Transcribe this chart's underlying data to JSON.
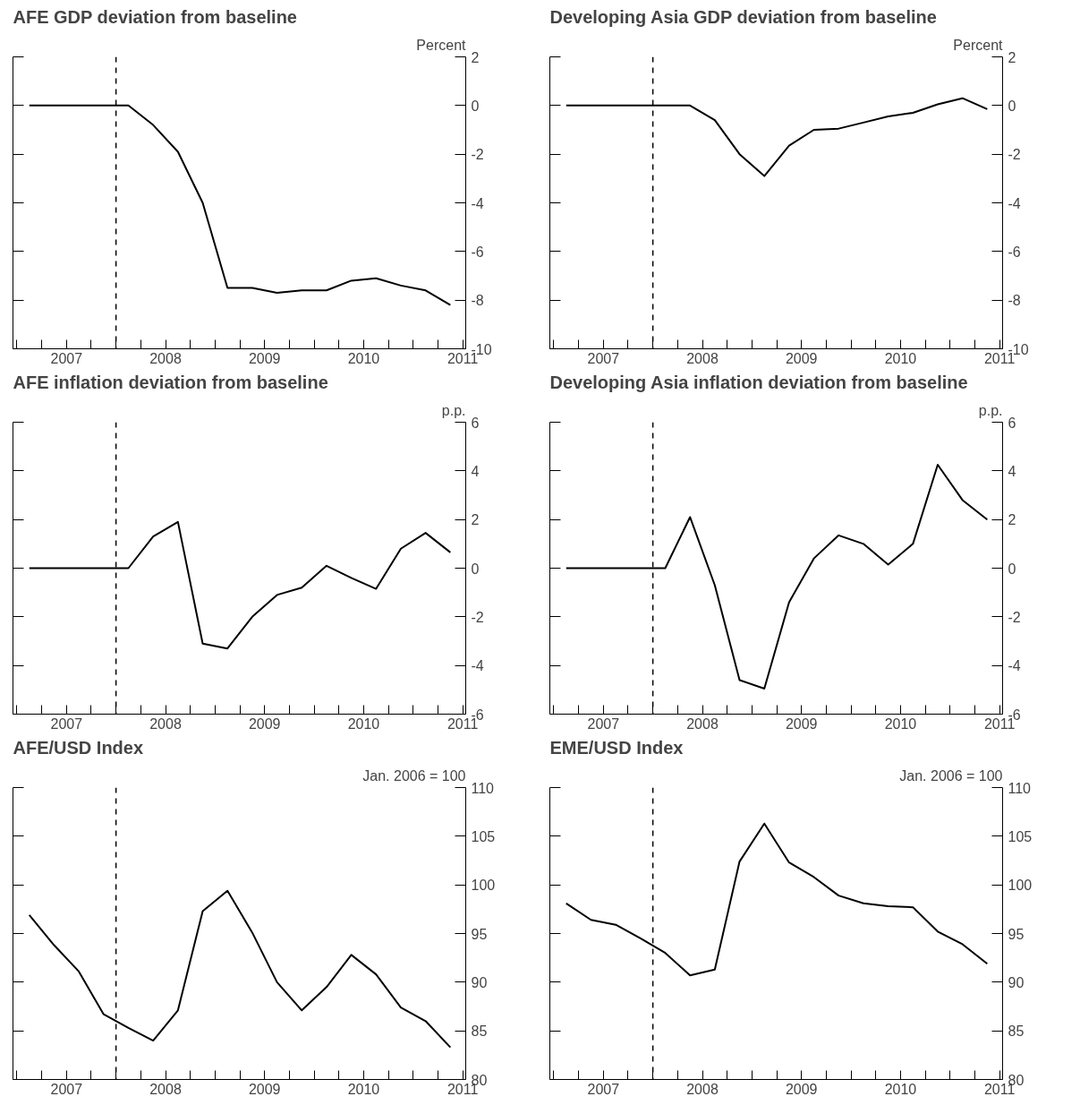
{
  "chart_data": [
    {
      "type": "line",
      "title": "AFE GDP deviation from baseline",
      "ylabel": "Percent",
      "x": [
        2007.125,
        2007.375,
        2007.625,
        2007.875,
        2008.125,
        2008.375,
        2008.625,
        2008.875,
        2009.125,
        2009.375,
        2009.625,
        2009.875,
        2010.125,
        2010.375,
        2010.625,
        2010.875,
        2011.125,
        2011.375
      ],
      "series": [
        {
          "color": "#000000",
          "values": [
            0,
            0,
            0,
            0,
            0,
            -0.8,
            -1.9,
            -4.0,
            -7.5,
            -7.5,
            -7.7,
            -7.6,
            -7.6,
            -7.2,
            -7.1,
            -7.4,
            -7.6,
            -8.2
          ]
        }
      ],
      "xlim": [
        2006.96,
        2011.53
      ],
      "ylim": [
        -10,
        2
      ],
      "xticks": [
        {
          "value": 2007,
          "label": null
        },
        {
          "value": 2007.25,
          "label": null
        },
        {
          "value": 2007.5,
          "label": "2007"
        },
        {
          "value": 2007.75,
          "label": null
        },
        {
          "value": 2008,
          "label": null
        },
        {
          "value": 2008.25,
          "label": null
        },
        {
          "value": 2008.5,
          "label": "2008"
        },
        {
          "value": 2008.75,
          "label": null
        },
        {
          "value": 2009,
          "label": null
        },
        {
          "value": 2009.25,
          "label": null
        },
        {
          "value": 2009.5,
          "label": "2009"
        },
        {
          "value": 2009.75,
          "label": null
        },
        {
          "value": 2010,
          "label": null
        },
        {
          "value": 2010.25,
          "label": null
        },
        {
          "value": 2010.5,
          "label": "2010"
        },
        {
          "value": 2010.75,
          "label": null
        },
        {
          "value": 2011,
          "label": null
        },
        {
          "value": 2011.25,
          "label": null
        },
        {
          "value": 2011.5,
          "label": "2011"
        }
      ],
      "yticks": [
        -10,
        -8,
        -6,
        -4,
        -2,
        0,
        2
      ],
      "ref_lines": [
        {
          "axis": "x",
          "value": 2008,
          "line_style": "dashed"
        }
      ]
    },
    {
      "type": "line",
      "title": "Developing Asia GDP deviation from baseline",
      "ylabel": "Percent",
      "x": [
        2007.125,
        2007.375,
        2007.625,
        2007.875,
        2008.125,
        2008.375,
        2008.625,
        2008.875,
        2009.125,
        2009.375,
        2009.625,
        2009.875,
        2010.125,
        2010.375,
        2010.625,
        2010.875,
        2011.125,
        2011.375
      ],
      "series": [
        {
          "color": "#000000",
          "values": [
            0,
            0,
            0,
            0,
            0,
            0,
            -0.6,
            -2.0,
            -2.9,
            -1.65,
            -1.0,
            -0.95,
            -0.7,
            -0.45,
            -0.3,
            0.05,
            0.3,
            -0.15
          ]
        }
      ],
      "xlim": [
        2006.96,
        2011.53
      ],
      "ylim": [
        -10,
        2
      ],
      "xticks": [
        {
          "value": 2007,
          "label": null
        },
        {
          "value": 2007.25,
          "label": null
        },
        {
          "value": 2007.5,
          "label": "2007"
        },
        {
          "value": 2007.75,
          "label": null
        },
        {
          "value": 2008,
          "label": null
        },
        {
          "value": 2008.25,
          "label": null
        },
        {
          "value": 2008.5,
          "label": "2008"
        },
        {
          "value": 2008.75,
          "label": null
        },
        {
          "value": 2009,
          "label": null
        },
        {
          "value": 2009.25,
          "label": null
        },
        {
          "value": 2009.5,
          "label": "2009"
        },
        {
          "value": 2009.75,
          "label": null
        },
        {
          "value": 2010,
          "label": null
        },
        {
          "value": 2010.25,
          "label": null
        },
        {
          "value": 2010.5,
          "label": "2010"
        },
        {
          "value": 2010.75,
          "label": null
        },
        {
          "value": 2011,
          "label": null
        },
        {
          "value": 2011.25,
          "label": null
        },
        {
          "value": 2011.5,
          "label": "2011"
        }
      ],
      "yticks": [
        -10,
        -8,
        -6,
        -4,
        -2,
        0,
        2
      ],
      "ref_lines": [
        {
          "axis": "x",
          "value": 2008,
          "line_style": "dashed"
        }
      ]
    },
    {
      "type": "line",
      "title": "AFE inflation deviation from baseline",
      "ylabel": "p.p.",
      "x": [
        2007.125,
        2007.375,
        2007.625,
        2007.875,
        2008.125,
        2008.375,
        2008.625,
        2008.875,
        2009.125,
        2009.375,
        2009.625,
        2009.875,
        2010.125,
        2010.375,
        2010.625,
        2010.875,
        2011.125,
        2011.375
      ],
      "series": [
        {
          "color": "#000000",
          "values": [
            0,
            0,
            0,
            0,
            0,
            1.3,
            1.9,
            -3.1,
            -3.3,
            -2.0,
            -1.1,
            -0.8,
            0.1,
            -0.4,
            -0.85,
            0.8,
            1.45,
            0.65
          ]
        }
      ],
      "xlim": [
        2006.96,
        2011.53
      ],
      "ylim": [
        -6,
        6
      ],
      "xticks": [
        {
          "value": 2007,
          "label": null
        },
        {
          "value": 2007.25,
          "label": null
        },
        {
          "value": 2007.5,
          "label": "2007"
        },
        {
          "value": 2007.75,
          "label": null
        },
        {
          "value": 2008,
          "label": null
        },
        {
          "value": 2008.25,
          "label": null
        },
        {
          "value": 2008.5,
          "label": "2008"
        },
        {
          "value": 2008.75,
          "label": null
        },
        {
          "value": 2009,
          "label": null
        },
        {
          "value": 2009.25,
          "label": null
        },
        {
          "value": 2009.5,
          "label": "2009"
        },
        {
          "value": 2009.75,
          "label": null
        },
        {
          "value": 2010,
          "label": null
        },
        {
          "value": 2010.25,
          "label": null
        },
        {
          "value": 2010.5,
          "label": "2010"
        },
        {
          "value": 2010.75,
          "label": null
        },
        {
          "value": 2011,
          "label": null
        },
        {
          "value": 2011.25,
          "label": null
        },
        {
          "value": 2011.5,
          "label": "2011"
        }
      ],
      "yticks": [
        -6,
        -4,
        -2,
        0,
        2,
        4,
        6
      ],
      "ref_lines": [
        {
          "axis": "x",
          "value": 2008,
          "line_style": "dashed"
        }
      ]
    },
    {
      "type": "line",
      "title": "Developing Asia inflation deviation from baseline",
      "ylabel": "p.p.",
      "x": [
        2007.125,
        2007.375,
        2007.625,
        2007.875,
        2008.125,
        2008.375,
        2008.625,
        2008.875,
        2009.125,
        2009.375,
        2009.625,
        2009.875,
        2010.125,
        2010.375,
        2010.625,
        2010.875,
        2011.125,
        2011.375
      ],
      "series": [
        {
          "color": "#000000",
          "values": [
            0,
            0,
            0,
            0,
            0,
            2.1,
            -0.7,
            -4.6,
            -4.95,
            -1.4,
            0.4,
            1.35,
            1.0,
            0.15,
            1.0,
            4.25,
            2.8,
            2.0
          ]
        }
      ],
      "xlim": [
        2006.96,
        2011.53
      ],
      "ylim": [
        -6,
        6
      ],
      "xticks": [
        {
          "value": 2007,
          "label": null
        },
        {
          "value": 2007.25,
          "label": null
        },
        {
          "value": 2007.5,
          "label": "2007"
        },
        {
          "value": 2007.75,
          "label": null
        },
        {
          "value": 2008,
          "label": null
        },
        {
          "value": 2008.25,
          "label": null
        },
        {
          "value": 2008.5,
          "label": "2008"
        },
        {
          "value": 2008.75,
          "label": null
        },
        {
          "value": 2009,
          "label": null
        },
        {
          "value": 2009.25,
          "label": null
        },
        {
          "value": 2009.5,
          "label": "2009"
        },
        {
          "value": 2009.75,
          "label": null
        },
        {
          "value": 2010,
          "label": null
        },
        {
          "value": 2010.25,
          "label": null
        },
        {
          "value": 2010.5,
          "label": "2010"
        },
        {
          "value": 2010.75,
          "label": null
        },
        {
          "value": 2011,
          "label": null
        },
        {
          "value": 2011.25,
          "label": null
        },
        {
          "value": 2011.5,
          "label": "2011"
        }
      ],
      "yticks": [
        -6,
        -4,
        -2,
        0,
        2,
        4,
        6
      ],
      "ref_lines": [
        {
          "axis": "x",
          "value": 2008,
          "line_style": "dashed"
        }
      ]
    },
    {
      "type": "line",
      "title": "AFE/USD Index",
      "ylabel": "Jan. 2006 = 100",
      "x": [
        2007.125,
        2007.375,
        2007.625,
        2007.875,
        2008.125,
        2008.375,
        2008.625,
        2008.875,
        2009.125,
        2009.375,
        2009.625,
        2009.875,
        2010.125,
        2010.375,
        2010.625,
        2010.875,
        2011.125,
        2011.375
      ],
      "series": [
        {
          "color": "#000000",
          "values": [
            96.9,
            93.8,
            91.1,
            86.7,
            85.3,
            84.0,
            87.1,
            97.3,
            99.4,
            95.1,
            90.0,
            87.1,
            89.5,
            92.8,
            90.8,
            87.4,
            86.0,
            83.3
          ]
        }
      ],
      "xlim": [
        2006.96,
        2011.53
      ],
      "ylim": [
        80,
        110
      ],
      "xticks": [
        {
          "value": 2007,
          "label": null
        },
        {
          "value": 2007.25,
          "label": null
        },
        {
          "value": 2007.5,
          "label": "2007"
        },
        {
          "value": 2007.75,
          "label": null
        },
        {
          "value": 2008,
          "label": null
        },
        {
          "value": 2008.25,
          "label": null
        },
        {
          "value": 2008.5,
          "label": "2008"
        },
        {
          "value": 2008.75,
          "label": null
        },
        {
          "value": 2009,
          "label": null
        },
        {
          "value": 2009.25,
          "label": null
        },
        {
          "value": 2009.5,
          "label": "2009"
        },
        {
          "value": 2009.75,
          "label": null
        },
        {
          "value": 2010,
          "label": null
        },
        {
          "value": 2010.25,
          "label": null
        },
        {
          "value": 2010.5,
          "label": "2010"
        },
        {
          "value": 2010.75,
          "label": null
        },
        {
          "value": 2011,
          "label": null
        },
        {
          "value": 2011.25,
          "label": null
        },
        {
          "value": 2011.5,
          "label": "2011"
        }
      ],
      "yticks": [
        80,
        85,
        90,
        95,
        100,
        105,
        110
      ],
      "ref_lines": [
        {
          "axis": "x",
          "value": 2008,
          "line_style": "dashed"
        }
      ]
    },
    {
      "type": "line",
      "title": "EME/USD Index",
      "ylabel": "Jan. 2006 = 100",
      "x": [
        2007.125,
        2007.375,
        2007.625,
        2007.875,
        2008.125,
        2008.375,
        2008.625,
        2008.875,
        2009.125,
        2009.375,
        2009.625,
        2009.875,
        2010.125,
        2010.375,
        2010.625,
        2010.875,
        2011.125,
        2011.375
      ],
      "series": [
        {
          "color": "#000000",
          "values": [
            98.1,
            96.4,
            95.9,
            94.5,
            93.0,
            90.7,
            91.3,
            102.4,
            106.3,
            102.3,
            100.8,
            98.9,
            98.1,
            97.8,
            97.7,
            95.2,
            93.9,
            91.9
          ]
        }
      ],
      "xlim": [
        2006.96,
        2011.53
      ],
      "ylim": [
        80,
        110
      ],
      "xticks": [
        {
          "value": 2007,
          "label": null
        },
        {
          "value": 2007.25,
          "label": null
        },
        {
          "value": 2007.5,
          "label": "2007"
        },
        {
          "value": 2007.75,
          "label": null
        },
        {
          "value": 2008,
          "label": null
        },
        {
          "value": 2008.25,
          "label": null
        },
        {
          "value": 2008.5,
          "label": "2008"
        },
        {
          "value": 2008.75,
          "label": null
        },
        {
          "value": 2009,
          "label": null
        },
        {
          "value": 2009.25,
          "label": null
        },
        {
          "value": 2009.5,
          "label": "2009"
        },
        {
          "value": 2009.75,
          "label": null
        },
        {
          "value": 2010,
          "label": null
        },
        {
          "value": 2010.25,
          "label": null
        },
        {
          "value": 2010.5,
          "label": "2010"
        },
        {
          "value": 2010.75,
          "label": null
        },
        {
          "value": 2011,
          "label": null
        },
        {
          "value": 2011.25,
          "label": null
        },
        {
          "value": 2011.5,
          "label": "2011"
        }
      ],
      "yticks": [
        80,
        85,
        90,
        95,
        100,
        105,
        110
      ],
      "ref_lines": [
        {
          "axis": "x",
          "value": 2008,
          "line_style": "dashed"
        }
      ]
    }
  ]
}
